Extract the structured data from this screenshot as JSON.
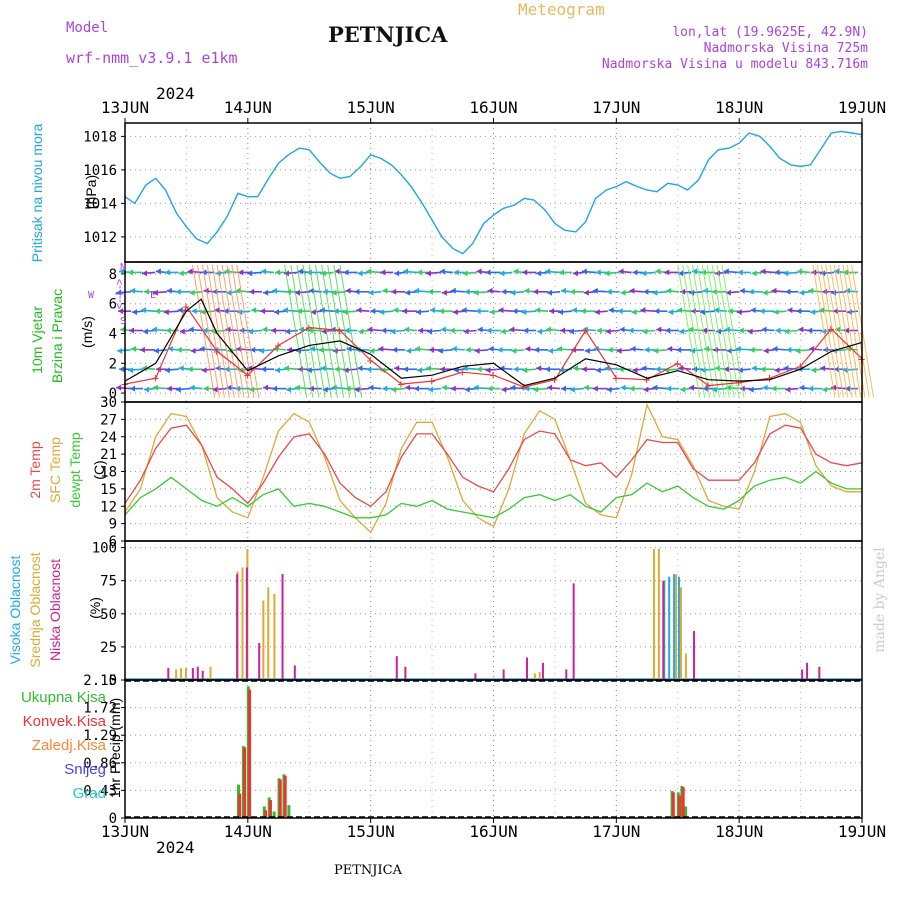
{
  "header": {
    "model_label": "Model",
    "model_name": "wrf-nmm_v3.9.1 e1km",
    "station": "PETNJICA",
    "title": "Meteogram",
    "location": "lon,lat (19.9625E, 42.9N)",
    "elevation": "Nadmorska Visina 725m",
    "model_elevation": "Nadmorska Visina u modelu 843.716m",
    "year": "2024",
    "footer_station": "PETNJICA",
    "credit": "made by Angel"
  },
  "colors": {
    "pressure": "#1fa8e0",
    "temp2m": "#e84b4b",
    "sfc": "#e0a83a",
    "dew": "#33cc33",
    "wind_label": "#22bb22",
    "purple": "#aa44dd",
    "high_cloud": "#22aaee",
    "mid_cloud": "#ddaa33",
    "low_cloud": "#cc2299",
    "total_precip": "#33bb33",
    "conv_precip": "#ee3333",
    "frozen_precip": "#ff8833",
    "snow": "#4444ee",
    "hail": "#22cccc"
  },
  "chart_data": [
    {
      "type": "line",
      "panel": "pressure",
      "ylabel": "Pritisak na nivou mora",
      "unit": "(hPa)",
      "ylim": [
        1010.5,
        1018.8
      ],
      "yticks": [
        1012,
        1014,
        1016,
        1018
      ],
      "x_days": [
        0,
        0.08,
        0.17,
        0.25,
        0.33,
        0.42,
        0.5,
        0.58,
        0.67,
        0.75,
        0.83,
        0.92,
        1.0,
        1.08,
        1.17,
        1.25,
        1.33,
        1.42,
        1.5,
        1.58,
        1.67,
        1.75,
        1.83,
        1.92,
        2.0,
        2.08,
        2.17,
        2.25,
        2.33,
        2.42,
        2.5,
        2.58,
        2.67,
        2.75,
        2.83,
        2.92,
        3.0,
        3.08,
        3.17,
        3.25,
        3.33,
        3.42,
        3.5,
        3.58,
        3.67,
        3.75,
        3.83,
        3.92,
        4.0,
        4.08,
        4.17,
        4.25,
        4.33,
        4.42,
        4.5,
        4.58,
        4.67,
        4.75,
        4.83,
        4.92,
        5.0,
        5.08,
        5.17,
        5.25,
        5.33,
        5.42,
        5.5,
        5.58,
        5.67,
        5.75,
        5.83,
        5.92,
        6.0
      ],
      "values": [
        1014.4,
        1014.0,
        1015.1,
        1015.5,
        1014.8,
        1013.4,
        1012.6,
        1011.9,
        1011.6,
        1012.3,
        1013.2,
        1014.6,
        1014.4,
        1014.4,
        1015.5,
        1016.4,
        1016.9,
        1017.3,
        1017.2,
        1016.5,
        1015.8,
        1015.5,
        1015.6,
        1016.2,
        1016.9,
        1016.7,
        1016.3,
        1015.7,
        1015.0,
        1014.0,
        1013.0,
        1012.0,
        1011.3,
        1011.0,
        1011.6,
        1012.8,
        1013.3,
        1013.7,
        1013.9,
        1014.3,
        1014.2,
        1013.6,
        1012.8,
        1012.4,
        1012.3,
        1012.9,
        1014.3,
        1014.8,
        1015.0,
        1015.3,
        1015.0,
        1014.8,
        1014.7,
        1015.2,
        1015.1,
        1014.8,
        1015.4,
        1016.6,
        1017.2,
        1017.3,
        1017.6,
        1018.2,
        1018.0,
        1017.4,
        1016.7,
        1016.3,
        1016.2,
        1016.3,
        1017.3,
        1018.2,
        1018.3,
        1018.2,
        1018.1
      ]
    },
    {
      "type": "line",
      "panel": "wind",
      "ylabel": "10m Vjetar Brzina i Pravac",
      "unit": "(m/s)",
      "compass": [
        "N",
        "<--|-->",
        "S",
        "W",
        "E"
      ],
      "ylim": [
        -0.6,
        8.8
      ],
      "yticks": [
        0,
        2,
        4,
        6,
        8
      ],
      "series": [
        {
          "name": "speed",
          "x_days": [
            0,
            0.25,
            0.5,
            0.62,
            0.75,
            1.0,
            1.25,
            1.5,
            1.75,
            2.0,
            2.25,
            2.5,
            2.75,
            3.0,
            3.25,
            3.5,
            3.75,
            4.0,
            4.25,
            4.5,
            4.75,
            5.0,
            5.25,
            5.5,
            5.75,
            6.0
          ],
          "values": [
            0.8,
            2.0,
            5.5,
            6.3,
            4.0,
            1.5,
            2.5,
            3.2,
            3.5,
            2.6,
            1.0,
            1.2,
            1.8,
            2.0,
            0.5,
            1.0,
            2.3,
            1.9,
            1.0,
            1.5,
            0.9,
            0.8,
            0.9,
            1.6,
            2.8,
            3.4
          ]
        },
        {
          "name": "gust",
          "x_days": [
            0,
            0.25,
            0.5,
            0.75,
            1.0,
            1.25,
            1.5,
            1.75,
            2.0,
            2.25,
            2.5,
            2.75,
            3.0,
            3.25,
            3.5,
            3.75,
            4.0,
            4.25,
            4.5,
            4.75,
            5.0,
            5.25,
            5.5,
            5.75,
            6.0
          ],
          "values": [
            0.6,
            1.0,
            5.8,
            2.8,
            1.2,
            3.2,
            4.4,
            4.2,
            2.2,
            0.6,
            0.8,
            1.4,
            1.2,
            0.4,
            0.9,
            4.2,
            1.0,
            0.9,
            2.0,
            0.5,
            0.7,
            1.0,
            1.8,
            4.3,
            2.3
          ]
        }
      ]
    },
    {
      "type": "line",
      "panel": "temperature",
      "ylabel": [
        "2m Temp",
        "SFC Temp",
        "dewpt Temp"
      ],
      "unit": "(C)",
      "ylim": [
        6,
        30
      ],
      "yticks": [
        6,
        9,
        12,
        15,
        18,
        21,
        24,
        27,
        30
      ],
      "x_days": [
        0,
        0.125,
        0.25,
        0.375,
        0.5,
        0.625,
        0.75,
        0.875,
        1.0,
        1.125,
        1.25,
        1.375,
        1.5,
        1.625,
        1.75,
        1.875,
        2.0,
        2.125,
        2.25,
        2.375,
        2.5,
        2.625,
        2.75,
        2.875,
        3.0,
        3.125,
        3.25,
        3.375,
        3.5,
        3.625,
        3.75,
        3.875,
        4.0,
        4.125,
        4.25,
        4.375,
        4.5,
        4.625,
        4.75,
        4.875,
        5.0,
        5.125,
        5.25,
        5.375,
        5.5,
        5.625,
        5.75,
        5.875,
        6.0
      ],
      "series": [
        {
          "name": "2m Temp",
          "values": [
            12.5,
            16.5,
            22.0,
            25.5,
            26.0,
            22.5,
            17.0,
            15.0,
            12.5,
            16.0,
            20.5,
            24.0,
            24.5,
            21.0,
            16.0,
            13.5,
            12.0,
            14.5,
            20.5,
            24.5,
            24.5,
            21.0,
            17.0,
            15.5,
            14.5,
            18.5,
            23.5,
            25.0,
            24.5,
            20.0,
            19.0,
            19.5,
            17.0,
            20.0,
            23.5,
            23.0,
            23.0,
            18.5,
            16.5,
            16.5,
            16.5,
            19.5,
            24.5,
            26.0,
            25.5,
            21.0,
            19.5,
            19.0,
            19.5
          ]
        },
        {
          "name": "SFC Temp",
          "values": [
            11.0,
            15.0,
            24.0,
            28.0,
            27.5,
            22.5,
            13.5,
            11.0,
            10.0,
            17.0,
            25.0,
            28.0,
            26.5,
            20.5,
            13.0,
            10.0,
            7.5,
            12.5,
            22.0,
            26.5,
            26.5,
            20.5,
            13.0,
            10.0,
            8.5,
            15.0,
            24.5,
            28.5,
            27.0,
            20.0,
            12.5,
            10.5,
            10.0,
            17.5,
            29.5,
            24.0,
            23.5,
            19.0,
            13.0,
            12.0,
            11.5,
            18.0,
            27.5,
            28.0,
            26.5,
            19.0,
            15.5,
            14.5,
            14.5
          ]
        },
        {
          "name": "dewpt Temp",
          "values": [
            10.5,
            13.5,
            15.0,
            17.0,
            15.0,
            13.0,
            12.0,
            13.5,
            12.0,
            14.0,
            15.0,
            12.0,
            12.5,
            12.0,
            11.0,
            10.0,
            10.0,
            10.5,
            12.5,
            12.0,
            13.0,
            11.5,
            11.0,
            10.5,
            10.0,
            11.5,
            13.5,
            14.0,
            13.0,
            14.0,
            12.0,
            11.0,
            13.5,
            14.0,
            16.0,
            14.5,
            15.5,
            13.5,
            12.0,
            11.5,
            13.0,
            15.5,
            16.5,
            17.0,
            16.0,
            18.0,
            16.0,
            15.0,
            15.0
          ]
        }
      ]
    },
    {
      "type": "bar",
      "panel": "clouds",
      "ylabel": [
        "Visoka Oblacnost",
        "Srednja Oblacnost",
        "Niska Oblacnost"
      ],
      "unit": "(%)",
      "ylim": [
        0,
        105
      ],
      "yticks": [
        0,
        25,
        50,
        75,
        100
      ],
      "series": [
        {
          "name": "Visoka Oblacnost",
          "x_days": [
            4.39,
            4.43,
            4.47,
            4.51
          ],
          "values": [
            75,
            78,
            80,
            78
          ]
        },
        {
          "name": "Srednja Oblacnost",
          "x_days": [
            0.4,
            0.44,
            0.48,
            0.68,
            0.9,
            0.94,
            0.98,
            1.11,
            1.15,
            1.2,
            3.32,
            3.36,
            4.29,
            4.33,
            4.47,
            4.51,
            4.55
          ],
          "values": [
            8,
            9,
            9,
            10,
            82,
            85,
            99,
            60,
            70,
            65,
            5,
            6,
            99,
            99,
            80,
            70,
            20
          ]
        },
        {
          "name": "Niska Oblacnost",
          "x_days": [
            0.32,
            0.52,
            0.56,
            0.6,
            0.88,
            0.96,
            1.06,
            1.25,
            1.35,
            2.18,
            2.25,
            2.82,
            3.05,
            3.24,
            3.37,
            3.56,
            3.62,
            4.35,
            4.6,
            5.48,
            5.52,
            5.62
          ],
          "values": [
            9,
            9,
            10,
            7,
            80,
            85,
            28,
            80,
            11,
            18,
            10,
            5,
            8,
            17,
            13,
            8,
            73,
            75,
            37,
            8,
            13,
            10
          ]
        }
      ]
    },
    {
      "type": "bar",
      "panel": "precipitation",
      "ylabel": "1hr Precip (mm)",
      "legend": [
        "Ukupna Kisa",
        "Konvek.Kisa",
        "Zaledj.Kisa",
        "Snijeg",
        "Grad"
      ],
      "ylim": [
        0,
        2.15
      ],
      "yticks": [
        0,
        0.43,
        0.86,
        1.29,
        1.72,
        2.15
      ],
      "series": [
        {
          "name": "Ukupna Kisa",
          "x_days": [
            0.92,
            0.96,
            1.0,
            1.13,
            1.17,
            1.21,
            1.25,
            1.29,
            1.33,
            4.45,
            4.5,
            4.53,
            4.56
          ],
          "values": [
            0.52,
            1.12,
            2.05,
            0.18,
            0.32,
            0.1,
            0.62,
            0.68,
            0.2,
            0.42,
            0.4,
            0.5,
            0.18
          ]
        },
        {
          "name": "Konvek.Kisa",
          "x_days": [
            0.93,
            0.97,
            1.01,
            1.14,
            1.18,
            1.26,
            1.3,
            4.46,
            4.51,
            4.54
          ],
          "values": [
            0.38,
            1.1,
            2.0,
            0.12,
            0.28,
            0.6,
            0.66,
            0.4,
            0.35,
            0.48
          ]
        }
      ]
    }
  ],
  "x_axis": {
    "days": 6,
    "labels": [
      "13JUN",
      "14JUN",
      "15JUN",
      "16JUN",
      "17JUN",
      "18JUN",
      "19JUN"
    ]
  },
  "legend_labels": {
    "ukupna": "Ukupna Kisa",
    "konvek": "Konvek.Kisa",
    "zaledj": "Zaledj.Kisa",
    "snijeg": "Snijeg",
    "grad": "Grad"
  }
}
